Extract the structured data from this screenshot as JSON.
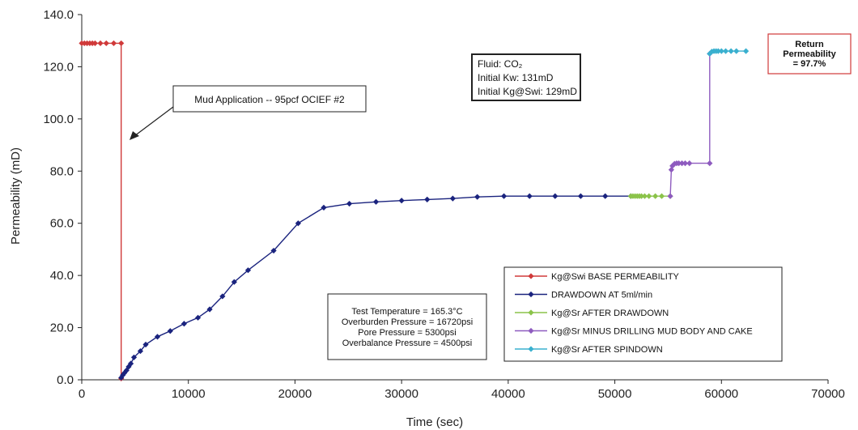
{
  "chart_data": {
    "type": "line",
    "title": "",
    "xlabel": "Time (sec)",
    "ylabel": "Permeability (mD)",
    "xlim": [
      0,
      70000
    ],
    "ylim": [
      0,
      140
    ],
    "x_ticks": [
      "0",
      "10000",
      "20000",
      "30000",
      "40000",
      "50000",
      "60000",
      "70000"
    ],
    "y_ticks": [
      "0.0",
      "20.0",
      "40.0",
      "60.0",
      "80.0",
      "100.0",
      "120.0",
      "140.0"
    ],
    "grid": false,
    "legend_position": "bottom-right",
    "series": [
      {
        "name": "Kg@Swi BASE PERMEABILITY",
        "color": "#d03a3a",
        "marker": true,
        "points": [
          [
            0,
            129
          ],
          [
            250,
            129
          ],
          [
            500,
            129
          ],
          [
            750,
            129
          ],
          [
            1000,
            129
          ],
          [
            1250,
            129
          ],
          [
            1750,
            129
          ],
          [
            2300,
            129
          ],
          [
            3000,
            129
          ],
          [
            3700,
            129
          ],
          [
            3700,
            0.5
          ]
        ]
      },
      {
        "name": "DRAWDOWN AT 5ml/min",
        "color": "#1a237e",
        "marker": true,
        "points": [
          [
            3700,
            0.8
          ],
          [
            3850,
            1.8
          ],
          [
            4000,
            2.6
          ],
          [
            4200,
            3.6
          ],
          [
            4400,
            5.0
          ],
          [
            4600,
            6.2
          ],
          [
            4900,
            8.6
          ],
          [
            5500,
            11.0
          ],
          [
            6000,
            13.5
          ],
          [
            7100,
            16.5
          ],
          [
            8300,
            18.7
          ],
          [
            9600,
            21.5
          ],
          [
            10900,
            23.8
          ],
          [
            12000,
            27.0
          ],
          [
            13200,
            32.0
          ],
          [
            14300,
            37.5
          ],
          [
            15600,
            42.0
          ],
          [
            18000,
            49.5
          ],
          [
            20300,
            60.0
          ],
          [
            22700,
            66.0
          ],
          [
            25100,
            67.5
          ],
          [
            27600,
            68.2
          ],
          [
            30000,
            68.7
          ],
          [
            32400,
            69.1
          ],
          [
            34800,
            69.5
          ],
          [
            37100,
            70.1
          ],
          [
            39600,
            70.4
          ],
          [
            42000,
            70.4
          ],
          [
            44400,
            70.4
          ],
          [
            46800,
            70.4
          ],
          [
            49100,
            70.4
          ],
          [
            51500,
            70.4
          ]
        ]
      },
      {
        "name": "Kg@Sr AFTER DRAWDOWN",
        "color": "#8bc34a",
        "marker": true,
        "points": [
          [
            51500,
            70.4
          ],
          [
            51700,
            70.4
          ],
          [
            51900,
            70.4
          ],
          [
            52100,
            70.4
          ],
          [
            52300,
            70.4
          ],
          [
            52500,
            70.4
          ],
          [
            52800,
            70.4
          ],
          [
            53200,
            70.4
          ],
          [
            53800,
            70.4
          ],
          [
            54400,
            70.4
          ],
          [
            55200,
            70.4
          ]
        ]
      },
      {
        "name": "Kg@Sr MINUS DRILLING MUD BODY AND CAKE",
        "color": "#8e5bbf",
        "marker": true,
        "points": [
          [
            55200,
            70.4
          ],
          [
            55300,
            80.5
          ],
          [
            55400,
            82.0
          ],
          [
            55600,
            82.8
          ],
          [
            55800,
            83.0
          ],
          [
            56000,
            83.0
          ],
          [
            56300,
            83.0
          ],
          [
            56600,
            83.0
          ],
          [
            57000,
            83.0
          ],
          [
            58900,
            83.0
          ],
          [
            58900,
            125
          ]
        ]
      },
      {
        "name": "Kg@Sr AFTER SPINDOWN",
        "color": "#3ab0cf",
        "marker": true,
        "points": [
          [
            58900,
            125
          ],
          [
            59100,
            125.8
          ],
          [
            59300,
            126
          ],
          [
            59500,
            126
          ],
          [
            59700,
            126
          ],
          [
            60000,
            126
          ],
          [
            60400,
            126
          ],
          [
            60900,
            126
          ],
          [
            61400,
            126
          ],
          [
            62300,
            126
          ]
        ]
      }
    ],
    "annotations": {
      "mud_application": "Mud Application -- 95pcf OCIEF #2",
      "fluid_lines": [
        "Fluid: CO₂",
        "Initial Kw: 131mD",
        "Initial Kg@Swi: 129mD"
      ],
      "return_lines": [
        "Return",
        "Permeability",
        "= 97.7%"
      ],
      "conditions_lines": [
        "Test Temperature = 165.3°C",
        "Overburden Pressure = 16720psi",
        "Pore Pressure = 5300psi",
        "Overbalance Pressure = 4500psi"
      ],
      "return_border_color": "#d03a3a"
    }
  }
}
